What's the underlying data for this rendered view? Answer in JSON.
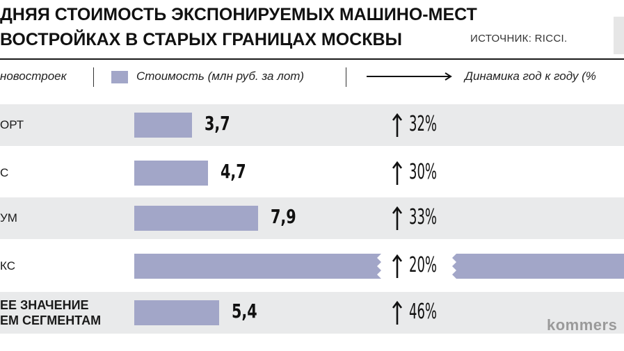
{
  "title": {
    "line1": "ДНЯЯ СТОИМОСТЬ ЭКСПОНИРУЕМЫХ МАШИНО-МЕСТ",
    "line2": "ВОСТРОЙКАХ В СТАРЫХ ГРАНИЦАХ МОСКВЫ",
    "source": "ИСТОЧНИК: RICCI."
  },
  "legend": {
    "type_label": "новостроек",
    "cost_label": "Стоимость (млн руб. за лот)",
    "dynamics_label": "Динамика год к году (%"
  },
  "watermark": "kommers",
  "colors": {
    "bar": "#a2a6c8",
    "band": "#e9eaeb",
    "text": "#111111"
  },
  "chart_data": {
    "type": "bar",
    "orientation": "horizontal",
    "categories": [
      "ОРТ",
      "С",
      "УМ",
      "КС",
      "ЕЕ ЗНАЧЕНИЕ ЕМ СЕГМЕНТАМ"
    ],
    "series": [
      {
        "name": "Стоимость (млн руб. за лот)",
        "values": [
          3.7,
          4.7,
          7.9,
          null,
          5.4
        ],
        "labels": [
          "3,7",
          "4,7",
          "7,9",
          "",
          "5,4"
        ]
      },
      {
        "name": "Динамика год к году (%",
        "values": [
          32,
          30,
          33,
          20,
          46
        ],
        "labels": [
          "32%",
          "30%",
          "33%",
          "20%",
          "46%"
        ]
      }
    ],
    "broken_bar_category": "КС",
    "xlim": [
      0,
      14
    ]
  },
  "rows": [
    {
      "label": [
        "ОРТ"
      ],
      "value": "3,7",
      "dyn": "32%"
    },
    {
      "label": [
        "С"
      ],
      "value": "4,7",
      "dyn": "30%"
    },
    {
      "label": [
        "УМ"
      ],
      "value": "7,9",
      "dyn": "33%"
    },
    {
      "label": [
        "КС"
      ],
      "value": "",
      "dyn": "20%"
    },
    {
      "label": [
        "ЕЕ ЗНАЧЕНИЕ",
        "ЕМ СЕГМЕНТАМ"
      ],
      "value": "5,4",
      "dyn": "46%"
    }
  ]
}
